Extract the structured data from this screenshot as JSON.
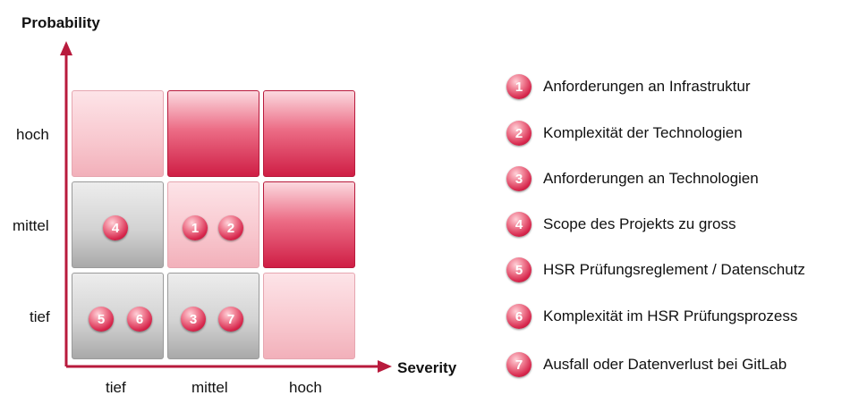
{
  "axes": {
    "y_title": "Probability",
    "x_title": "Severity",
    "y_levels": [
      "hoch",
      "mittel",
      "tief"
    ],
    "x_levels": [
      "tief",
      "mittel",
      "hoch"
    ],
    "color": "#b81a3c"
  },
  "matrix": {
    "colors": {
      "low": "#d3d3d3",
      "medium": "#f8c7ce",
      "high": "#ec6d86"
    },
    "rows": [
      {
        "probability": "hoch",
        "cells": [
          "medium",
          "high",
          "high"
        ]
      },
      {
        "probability": "mittel",
        "cells": [
          "low",
          "medium",
          "high"
        ]
      },
      {
        "probability": "tief",
        "cells": [
          "low",
          "low",
          "medium"
        ]
      }
    ],
    "risks_in_cells": {
      "mittel-tief": [
        "4"
      ],
      "mittel-mittel": [
        "1",
        "2"
      ],
      "tief-tief": [
        "5",
        "6"
      ],
      "tief-mittel": [
        "3",
        "7"
      ]
    }
  },
  "legend": [
    {
      "num": "1",
      "text": "Anforderungen an Infrastruktur"
    },
    {
      "num": "2",
      "text": "Komplexität der Technologien"
    },
    {
      "num": "3",
      "text": "Anforderungen an Technologien"
    },
    {
      "num": "4",
      "text": "Scope des Projekts zu gross"
    },
    {
      "num": "5",
      "text": "HSR Prüfungsreglement / Datenschutz"
    },
    {
      "num": "6",
      "text": "Komplexität im HSR Prüfungsprozess"
    },
    {
      "num": "7",
      "text": "Ausfall oder Datenverlust bei GitLab"
    }
  ]
}
